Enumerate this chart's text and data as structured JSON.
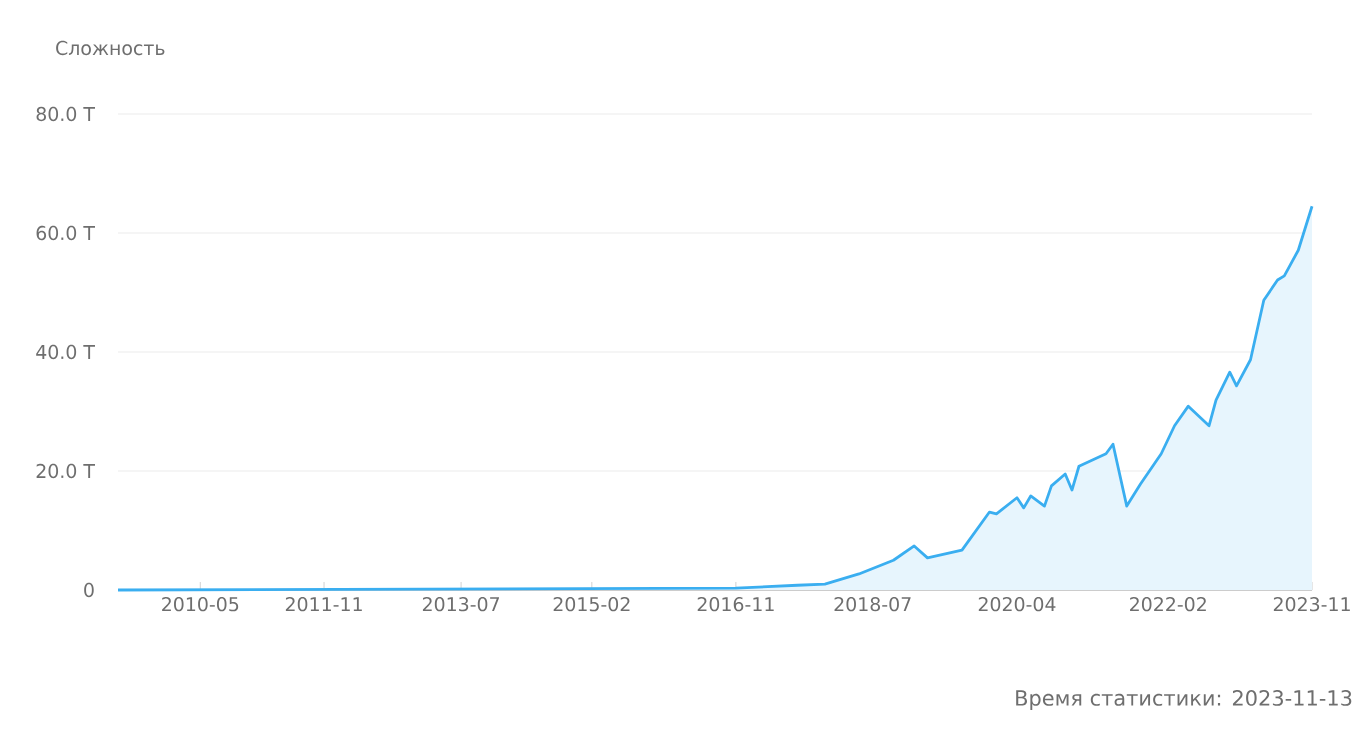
{
  "chart_data": {
    "type": "area",
    "ylabel": "Сложность",
    "annotations": [
      "Время статистики: 2023-11-13"
    ],
    "color": "#3aaef0",
    "x": [
      "2009-05",
      "2016-11",
      "2017-08",
      "2017-12",
      "2018-05",
      "2018-10",
      "2019-01",
      "2019-03",
      "2019-08",
      "2019-12",
      "2020-01",
      "2020-04",
      "2020-05",
      "2020-06",
      "2020-08",
      "2020-09",
      "2020-11",
      "2020-12",
      "2021-01",
      "2021-05",
      "2021-06",
      "2021-08",
      "2021-10",
      "2022-01",
      "2022-03",
      "2022-05",
      "2022-08",
      "2022-09",
      "2022-11",
      "2022-12",
      "2023-02",
      "2023-04",
      "2023-06",
      "2023-07",
      "2023-09",
      "2023-11"
    ],
    "values": [
      0,
      0.3,
      0.8,
      1.0,
      2.7,
      5.0,
      7.4,
      5.4,
      6.7,
      13.1,
      12.8,
      15.5,
      13.8,
      15.8,
      14.1,
      17.5,
      19.5,
      16.8,
      20.8,
      22.9,
      24.5,
      14.1,
      17.8,
      22.9,
      27.6,
      30.9,
      27.6,
      31.9,
      36.6,
      34.3,
      38.7,
      48.7,
      52.1,
      52.8,
      57.1,
      64.5
    ],
    "xlim": [
      "2009-05",
      "2023-11"
    ],
    "xticks": [
      "2010-05",
      "2011-11",
      "2013-07",
      "2015-02",
      "2016-11",
      "2018-07",
      "2020-04",
      "2022-02",
      "2023-11"
    ],
    "ylim": [
      0,
      80
    ],
    "yticks": [
      0,
      {
        "value": 20,
        "label": "20.0 T"
      },
      {
        "value": 40,
        "label": "40.0 T"
      },
      {
        "value": 60,
        "label": "60.0 T"
      },
      {
        "value": 80,
        "label": "80.0 T"
      }
    ],
    "grid": "y"
  }
}
